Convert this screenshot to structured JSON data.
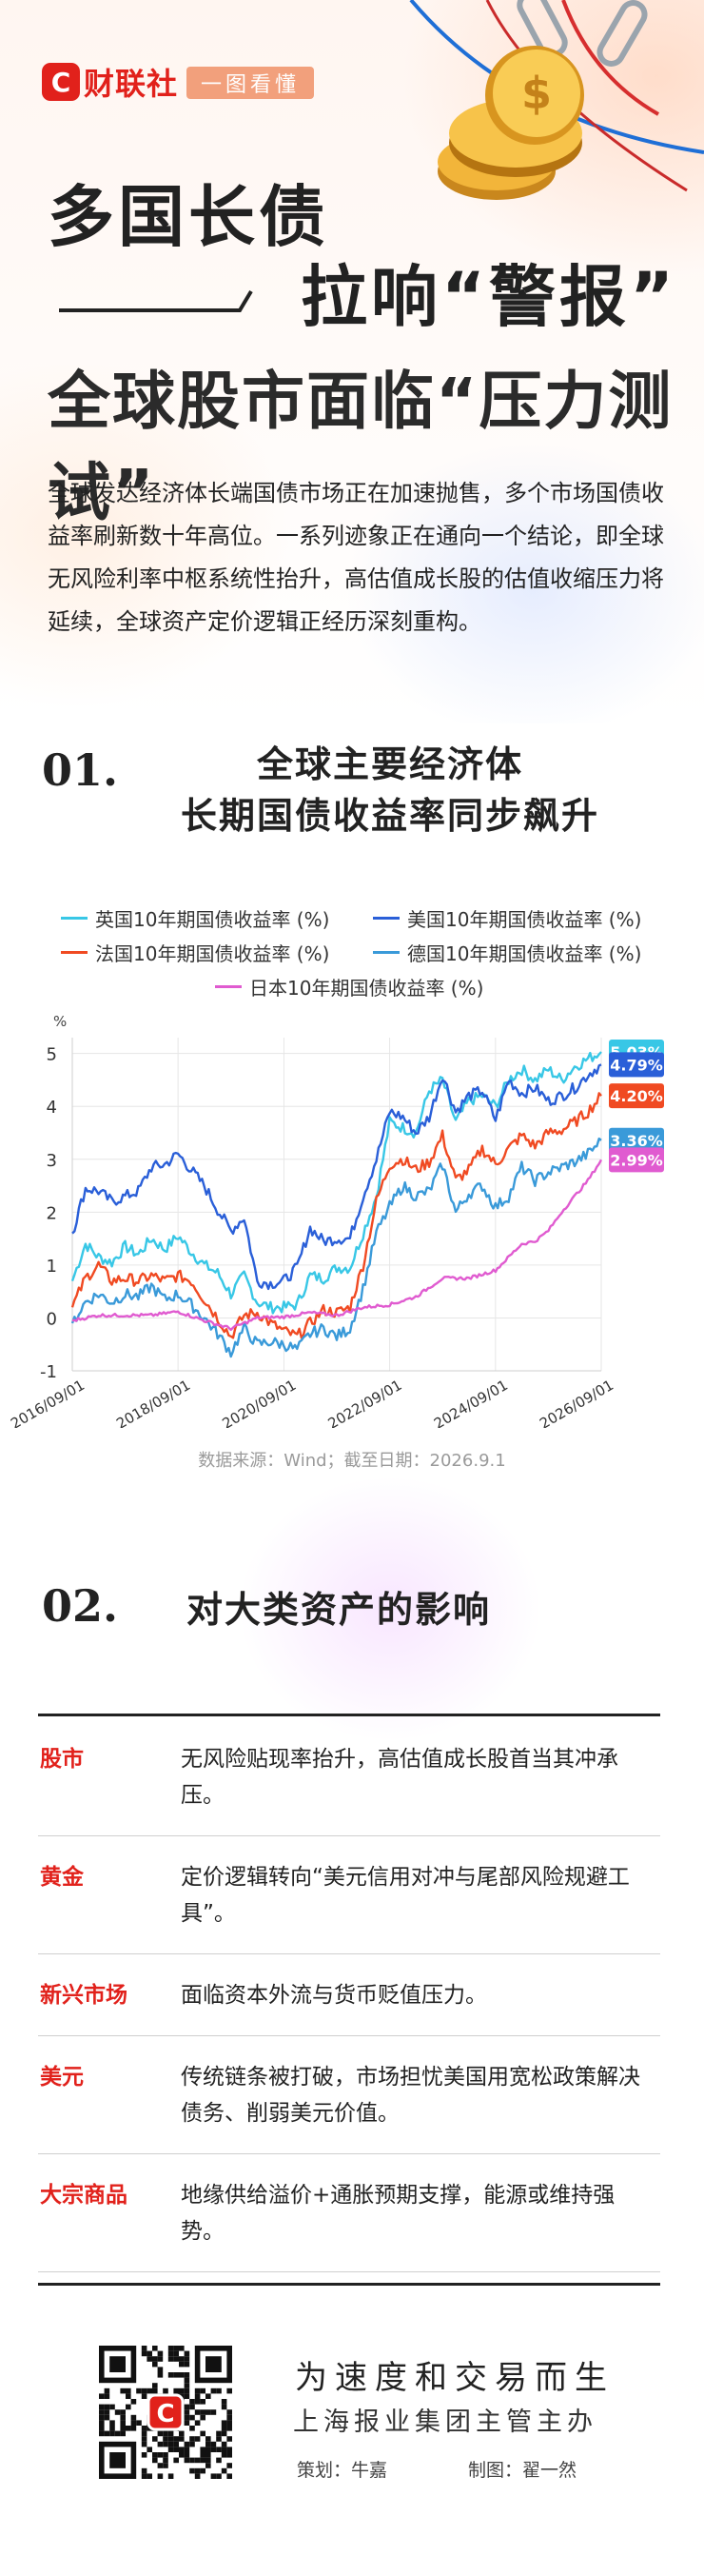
{
  "header": {
    "brand": "财联社",
    "brand_mark": "C",
    "tag": "一图看懂"
  },
  "title": {
    "line1": "多国长债",
    "line2": "拉响“警报”",
    "line3": "全球股市面临“压力测试”"
  },
  "intro": "全球发达经济体长端国债市场正在加速抛售，多个市场国债收益率刷新数十年高位。一系列迹象正在通向一个结论，即全球无风险利率中枢系统性抬升，高估值成长股的估值收缩压力将延续，全球资产定价逻辑正经历深刻重构。",
  "section1": {
    "num": "01.",
    "title_line1": "全球主要经济体",
    "title_line2": "长期国债收益率同步飙升"
  },
  "chart_data": {
    "type": "line",
    "title": "",
    "xlabel": "",
    "ylabel": "%",
    "ylim": [
      -1,
      5.3
    ],
    "yticks": [
      -1,
      0,
      1,
      2,
      3,
      4,
      5
    ],
    "xlim": [
      "2016-09-01",
      "2026-09-01"
    ],
    "xticks": [
      "2016/09/01",
      "2018/09/01",
      "2020/09/01",
      "2022/09/01",
      "2024/09/01",
      "2026/09/01"
    ],
    "grid": true,
    "legend_position": "top",
    "series": [
      {
        "name": "英国10年期国债收益率 (%)",
        "color": "#38c7e6",
        "last_label": "5.03%",
        "points": [
          [
            "2016-09-01",
            0.7
          ],
          [
            "2016-12-01",
            1.4
          ],
          [
            "2017-03-01",
            1.15
          ],
          [
            "2017-06-01",
            1.05
          ],
          [
            "2017-09-01",
            1.35
          ],
          [
            "2017-12-01",
            1.2
          ],
          [
            "2018-03-01",
            1.5
          ],
          [
            "2018-06-01",
            1.3
          ],
          [
            "2018-09-01",
            1.55
          ],
          [
            "2018-12-01",
            1.25
          ],
          [
            "2019-03-01",
            1.0
          ],
          [
            "2019-06-01",
            0.85
          ],
          [
            "2019-09-01",
            0.45
          ],
          [
            "2019-12-01",
            0.8
          ],
          [
            "2020-03-01",
            0.3
          ],
          [
            "2020-06-01",
            0.2
          ],
          [
            "2020-09-01",
            0.2
          ],
          [
            "2020-12-01",
            0.25
          ],
          [
            "2021-03-01",
            0.8
          ],
          [
            "2021-06-01",
            0.75
          ],
          [
            "2021-09-01",
            0.95
          ],
          [
            "2021-12-01",
            0.95
          ],
          [
            "2022-03-01",
            1.6
          ],
          [
            "2022-06-01",
            2.3
          ],
          [
            "2022-09-01",
            3.7
          ],
          [
            "2022-12-01",
            3.6
          ],
          [
            "2023-03-01",
            3.5
          ],
          [
            "2023-06-01",
            4.3
          ],
          [
            "2023-09-01",
            4.5
          ],
          [
            "2023-12-01",
            3.7
          ],
          [
            "2024-03-01",
            4.1
          ],
          [
            "2024-06-01",
            4.2
          ],
          [
            "2024-09-01",
            4.0
          ],
          [
            "2024-12-01",
            4.5
          ],
          [
            "2025-03-01",
            4.7
          ],
          [
            "2025-06-01",
            4.5
          ],
          [
            "2025-09-01",
            4.7
          ],
          [
            "2025-12-01",
            4.5
          ],
          [
            "2026-03-01",
            4.75
          ],
          [
            "2026-06-01",
            4.9
          ],
          [
            "2026-09-01",
            5.03
          ]
        ]
      },
      {
        "name": "美国10年期国债收益率 (%)",
        "color": "#2a5fd8",
        "last_label": "4.79%",
        "points": [
          [
            "2016-09-01",
            1.6
          ],
          [
            "2016-12-01",
            2.45
          ],
          [
            "2017-03-01",
            2.4
          ],
          [
            "2017-06-01",
            2.2
          ],
          [
            "2017-09-01",
            2.3
          ],
          [
            "2017-12-01",
            2.4
          ],
          [
            "2018-03-01",
            2.85
          ],
          [
            "2018-06-01",
            2.9
          ],
          [
            "2018-09-01",
            3.1
          ],
          [
            "2018-12-01",
            2.8
          ],
          [
            "2019-03-01",
            2.5
          ],
          [
            "2019-06-01",
            2.05
          ],
          [
            "2019-09-01",
            1.65
          ],
          [
            "2019-12-01",
            1.9
          ],
          [
            "2020-03-01",
            0.7
          ],
          [
            "2020-06-01",
            0.65
          ],
          [
            "2020-09-01",
            0.7
          ],
          [
            "2020-12-01",
            0.95
          ],
          [
            "2021-03-01",
            1.7
          ],
          [
            "2021-06-01",
            1.45
          ],
          [
            "2021-09-01",
            1.5
          ],
          [
            "2021-12-01",
            1.5
          ],
          [
            "2022-03-01",
            2.3
          ],
          [
            "2022-06-01",
            3.0
          ],
          [
            "2022-09-01",
            3.9
          ],
          [
            "2022-12-01",
            3.8
          ],
          [
            "2023-03-01",
            3.5
          ],
          [
            "2023-06-01",
            3.8
          ],
          [
            "2023-09-01",
            4.6
          ],
          [
            "2023-12-01",
            3.9
          ],
          [
            "2024-03-01",
            4.2
          ],
          [
            "2024-06-01",
            4.3
          ],
          [
            "2024-09-01",
            3.75
          ],
          [
            "2024-12-01",
            4.5
          ],
          [
            "2025-03-01",
            4.25
          ],
          [
            "2025-06-01",
            4.35
          ],
          [
            "2025-09-01",
            4.1
          ],
          [
            "2025-12-01",
            4.2
          ],
          [
            "2026-03-01",
            4.35
          ],
          [
            "2026-06-01",
            4.6
          ],
          [
            "2026-09-01",
            4.79
          ]
        ]
      },
      {
        "name": "法国10年期国债收益率 (%)",
        "color": "#f04a22",
        "last_label": "4.20%",
        "points": [
          [
            "2016-09-01",
            0.2
          ],
          [
            "2016-12-01",
            0.75
          ],
          [
            "2017-03-01",
            1.0
          ],
          [
            "2017-06-01",
            0.7
          ],
          [
            "2017-09-01",
            0.75
          ],
          [
            "2017-12-01",
            0.7
          ],
          [
            "2018-03-01",
            0.8
          ],
          [
            "2018-06-01",
            0.7
          ],
          [
            "2018-09-01",
            0.8
          ],
          [
            "2018-12-01",
            0.7
          ],
          [
            "2019-03-01",
            0.35
          ],
          [
            "2019-06-01",
            0.0
          ],
          [
            "2019-09-01",
            -0.35
          ],
          [
            "2019-12-01",
            0.05
          ],
          [
            "2020-03-01",
            0.1
          ],
          [
            "2020-06-01",
            -0.1
          ],
          [
            "2020-09-01",
            -0.25
          ],
          [
            "2020-12-01",
            -0.35
          ],
          [
            "2021-03-01",
            -0.1
          ],
          [
            "2021-06-01",
            0.15
          ],
          [
            "2021-09-01",
            0.1
          ],
          [
            "2021-12-01",
            0.2
          ],
          [
            "2022-03-01",
            1.0
          ],
          [
            "2022-06-01",
            2.2
          ],
          [
            "2022-09-01",
            2.9
          ],
          [
            "2022-12-01",
            3.0
          ],
          [
            "2023-03-01",
            2.8
          ],
          [
            "2023-06-01",
            2.95
          ],
          [
            "2023-09-01",
            3.45
          ],
          [
            "2023-12-01",
            2.6
          ],
          [
            "2024-03-01",
            2.8
          ],
          [
            "2024-06-01",
            3.2
          ],
          [
            "2024-09-01",
            2.9
          ],
          [
            "2024-12-01",
            3.2
          ],
          [
            "2025-03-01",
            3.45
          ],
          [
            "2025-06-01",
            3.25
          ],
          [
            "2025-09-01",
            3.5
          ],
          [
            "2025-12-01",
            3.55
          ],
          [
            "2026-03-01",
            3.7
          ],
          [
            "2026-06-01",
            3.9
          ],
          [
            "2026-09-01",
            4.2
          ]
        ]
      },
      {
        "name": "德国10年期国债收益率 (%)",
        "color": "#3a9ad9",
        "last_label": "3.36%",
        "points": [
          [
            "2016-09-01",
            -0.1
          ],
          [
            "2016-12-01",
            0.3
          ],
          [
            "2017-03-01",
            0.45
          ],
          [
            "2017-06-01",
            0.3
          ],
          [
            "2017-09-01",
            0.45
          ],
          [
            "2017-12-01",
            0.4
          ],
          [
            "2018-03-01",
            0.6
          ],
          [
            "2018-06-01",
            0.35
          ],
          [
            "2018-09-01",
            0.45
          ],
          [
            "2018-12-01",
            0.25
          ],
          [
            "2019-03-01",
            0.0
          ],
          [
            "2019-06-01",
            -0.3
          ],
          [
            "2019-09-01",
            -0.65
          ],
          [
            "2019-12-01",
            -0.2
          ],
          [
            "2020-03-01",
            -0.5
          ],
          [
            "2020-06-01",
            -0.45
          ],
          [
            "2020-09-01",
            -0.5
          ],
          [
            "2020-12-01",
            -0.6
          ],
          [
            "2021-03-01",
            -0.3
          ],
          [
            "2021-06-01",
            -0.2
          ],
          [
            "2021-09-01",
            -0.35
          ],
          [
            "2021-12-01",
            -0.2
          ],
          [
            "2022-03-01",
            0.55
          ],
          [
            "2022-06-01",
            1.6
          ],
          [
            "2022-09-01",
            2.1
          ],
          [
            "2022-12-01",
            2.5
          ],
          [
            "2023-03-01",
            2.3
          ],
          [
            "2023-06-01",
            2.4
          ],
          [
            "2023-09-01",
            2.9
          ],
          [
            "2023-12-01",
            2.0
          ],
          [
            "2024-03-01",
            2.35
          ],
          [
            "2024-06-01",
            2.5
          ],
          [
            "2024-09-01",
            2.1
          ],
          [
            "2024-12-01",
            2.3
          ],
          [
            "2025-03-01",
            2.85
          ],
          [
            "2025-06-01",
            2.6
          ],
          [
            "2025-09-01",
            2.75
          ],
          [
            "2025-12-01",
            2.85
          ],
          [
            "2026-03-01",
            2.95
          ],
          [
            "2026-06-01",
            3.1
          ],
          [
            "2026-09-01",
            3.36
          ]
        ]
      },
      {
        "name": "日本10年期国债收益率 (%)",
        "color": "#e05bd0",
        "last_label": "2.99%",
        "points": [
          [
            "2016-09-01",
            -0.05
          ],
          [
            "2017-03-01",
            0.05
          ],
          [
            "2017-09-01",
            0.05
          ],
          [
            "2018-03-01",
            0.05
          ],
          [
            "2018-09-01",
            0.12
          ],
          [
            "2019-03-01",
            -0.05
          ],
          [
            "2019-09-01",
            -0.2
          ],
          [
            "2020-03-01",
            0.0
          ],
          [
            "2020-09-01",
            0.02
          ],
          [
            "2021-03-01",
            0.1
          ],
          [
            "2021-09-01",
            0.05
          ],
          [
            "2022-03-01",
            0.2
          ],
          [
            "2022-09-01",
            0.25
          ],
          [
            "2023-03-01",
            0.4
          ],
          [
            "2023-09-01",
            0.75
          ],
          [
            "2024-03-01",
            0.75
          ],
          [
            "2024-09-01",
            0.9
          ],
          [
            "2025-03-01",
            1.4
          ],
          [
            "2025-06-01",
            1.45
          ],
          [
            "2025-09-01",
            1.65
          ],
          [
            "2025-12-01",
            2.0
          ],
          [
            "2026-03-01",
            2.3
          ],
          [
            "2026-06-01",
            2.6
          ],
          [
            "2026-09-01",
            2.99
          ]
        ]
      }
    ]
  },
  "source": "数据来源：Wind；截至日期：2026.9.1",
  "section2": {
    "num": "02.",
    "title": "对大类资产的影响",
    "rows": [
      {
        "key": "股市",
        "value": "无风险贴现率抬升，高估值成长股首当其冲承压。"
      },
      {
        "key": "黄金",
        "value": "定价逻辑转向“美元信用对冲与尾部风险规避工具”。"
      },
      {
        "key": "新兴市场",
        "value": "面临资本外流与货币贬值压力。"
      },
      {
        "key": "美元",
        "value": "传统链条被打破，市场担忧美国用宽松政策解决债务、削弱美元价值。"
      },
      {
        "key": "大宗商品",
        "value": "地缘供给溢价+通胀预期支撑，能源或维持强势。"
      }
    ]
  },
  "footer": {
    "slogan": "为速度和交易而生",
    "org": "上海报业集团主管主办",
    "planner": "策划：牛嘉",
    "producer": "制图：翟一然"
  }
}
